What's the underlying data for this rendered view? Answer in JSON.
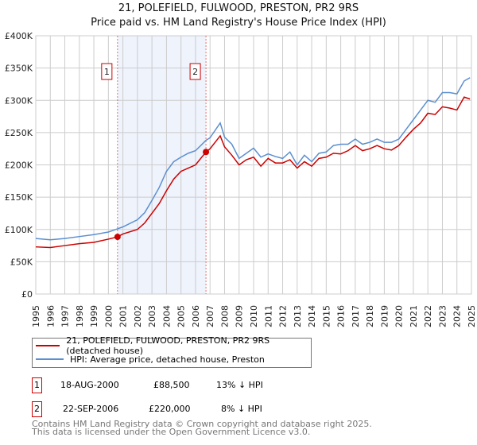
{
  "title_line1": "21, POLEFIELD, FULWOOD, PRESTON, PR2 9RS",
  "title_line2": "Price paid vs. HM Land Registry's House Price Index (HPI)",
  "colors": {
    "property": "#cc0000",
    "hpi": "#5b8fd0",
    "shade": "#eef3fc",
    "grid": "#cccccc"
  },
  "chart_data": {
    "type": "line",
    "ylim": [
      0,
      400000
    ],
    "xlim": [
      1995,
      2025
    ],
    "yticks": [
      {
        "v": 0,
        "label": "£0"
      },
      {
        "v": 50000,
        "label": "£50K"
      },
      {
        "v": 100000,
        "label": "£100K"
      },
      {
        "v": 150000,
        "label": "£150K"
      },
      {
        "v": 200000,
        "label": "£200K"
      },
      {
        "v": 250000,
        "label": "£250K"
      },
      {
        "v": 300000,
        "label": "£300K"
      },
      {
        "v": 350000,
        "label": "£350K"
      },
      {
        "v": 400000,
        "label": "£400K"
      }
    ],
    "xticks": [
      "1995",
      "1996",
      "1997",
      "1998",
      "1999",
      "2000",
      "2001",
      "2002",
      "2003",
      "2004",
      "2005",
      "2006",
      "2007",
      "2008",
      "2009",
      "2010",
      "2011",
      "2012",
      "2013",
      "2014",
      "2015",
      "2016",
      "2017",
      "2018",
      "2019",
      "2020",
      "2021",
      "2022",
      "2023",
      "2024",
      "2025"
    ],
    "series": [
      {
        "name": "21, POLEFIELD, FULWOOD, PRESTON, PR2 9RS (detached house)",
        "color": "#cc0000",
        "x": [
          1995,
          1996,
          1997,
          1998,
          1999,
          2000,
          2000.63,
          2001,
          2002,
          2002.5,
          2003,
          2003.5,
          2004,
          2004.5,
          2005,
          2005.5,
          2006,
          2006.72,
          2007,
          2007.7,
          2008,
          2008.5,
          2009,
          2009.5,
          2010,
          2010.5,
          2011,
          2011.5,
          2012,
          2012.5,
          2013,
          2013.5,
          2014,
          2014.5,
          2015,
          2015.5,
          2016,
          2016.5,
          2017,
          2017.5,
          2018,
          2018.5,
          2019,
          2019.5,
          2020,
          2020.5,
          2021,
          2021.5,
          2022,
          2022.5,
          2023,
          2023.5,
          2024,
          2024.5,
          2024.9
        ],
        "y": [
          73000,
          72000,
          75000,
          78000,
          80000,
          85000,
          88500,
          93000,
          100000,
          110000,
          125000,
          140000,
          160000,
          178000,
          190000,
          195000,
          200000,
          220000,
          225000,
          245000,
          228000,
          215000,
          200000,
          208000,
          212000,
          198000,
          210000,
          203000,
          203000,
          208000,
          195000,
          205000,
          198000,
          210000,
          212000,
          218000,
          217000,
          222000,
          230000,
          222000,
          225000,
          230000,
          225000,
          223000,
          230000,
          243000,
          255000,
          265000,
          280000,
          278000,
          290000,
          288000,
          285000,
          305000,
          302000
        ]
      },
      {
        "name": "HPI: Average price, detached house, Preston",
        "color": "#5b8fd0",
        "x": [
          1995,
          1996,
          1997,
          1998,
          1999,
          2000,
          2000.63,
          2001,
          2002,
          2002.5,
          2003,
          2003.5,
          2004,
          2004.5,
          2005,
          2005.5,
          2006,
          2006.72,
          2007,
          2007.7,
          2008,
          2008.5,
          2009,
          2009.5,
          2010,
          2010.5,
          2011,
          2011.5,
          2012,
          2012.5,
          2013,
          2013.5,
          2014,
          2014.5,
          2015,
          2015.5,
          2016,
          2016.5,
          2017,
          2017.5,
          2018,
          2018.5,
          2019,
          2019.5,
          2020,
          2020.5,
          2021,
          2021.5,
          2022,
          2022.5,
          2023,
          2023.5,
          2024,
          2024.5,
          2024.9
        ],
        "y": [
          86000,
          84000,
          86000,
          89000,
          92000,
          96000,
          101000,
          104000,
          115000,
          126000,
          145000,
          165000,
          190000,
          205000,
          212000,
          218000,
          222000,
          238000,
          242000,
          265000,
          243000,
          232000,
          210000,
          218000,
          226000,
          212000,
          217000,
          213000,
          210000,
          220000,
          200000,
          215000,
          205000,
          218000,
          220000,
          230000,
          232000,
          232000,
          240000,
          232000,
          235000,
          240000,
          235000,
          235000,
          240000,
          255000,
          270000,
          285000,
          300000,
          297000,
          312000,
          312000,
          310000,
          330000,
          335000
        ]
      }
    ],
    "sales": [
      {
        "label": "1",
        "x": 2000.63,
        "y": 88500
      },
      {
        "label": "2",
        "x": 2006.72,
        "y": 220000
      }
    ]
  },
  "legend": {
    "property": "21, POLEFIELD, FULWOOD, PRESTON, PR2 9RS (detached house)",
    "hpi": "HPI: Average price, detached house, Preston"
  },
  "transactions": [
    {
      "num": "1",
      "date": "18-AUG-2000",
      "price": "£88,500",
      "diff": "13% ↓ HPI"
    },
    {
      "num": "2",
      "date": "22-SEP-2006",
      "price": "£220,000",
      "diff": "8% ↓ HPI"
    }
  ],
  "footer": {
    "line1": "Contains HM Land Registry data © Crown copyright and database right 2025.",
    "line2": "This data is licensed under the Open Government Licence v3.0."
  }
}
